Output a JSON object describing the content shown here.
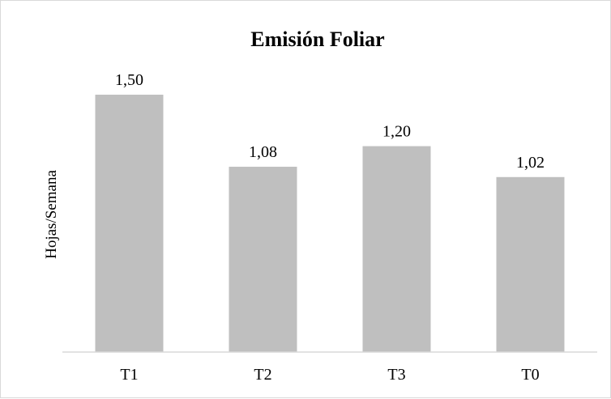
{
  "chart_data": {
    "type": "bar",
    "title": "Emisión Foliar",
    "xlabel": "",
    "ylabel": "Hojas/Semana",
    "categories": [
      "T1",
      "T2",
      "T3",
      "T0"
    ],
    "values": [
      1.5,
      1.08,
      1.2,
      1.02
    ],
    "data_labels": [
      "1,50",
      "1,08",
      "1,20",
      "1,02"
    ],
    "ylim": [
      0,
      1.5
    ],
    "grid": false,
    "legend": "none",
    "bar_color": "#bfbfbf",
    "axis_color": "#d9d9d9"
  }
}
